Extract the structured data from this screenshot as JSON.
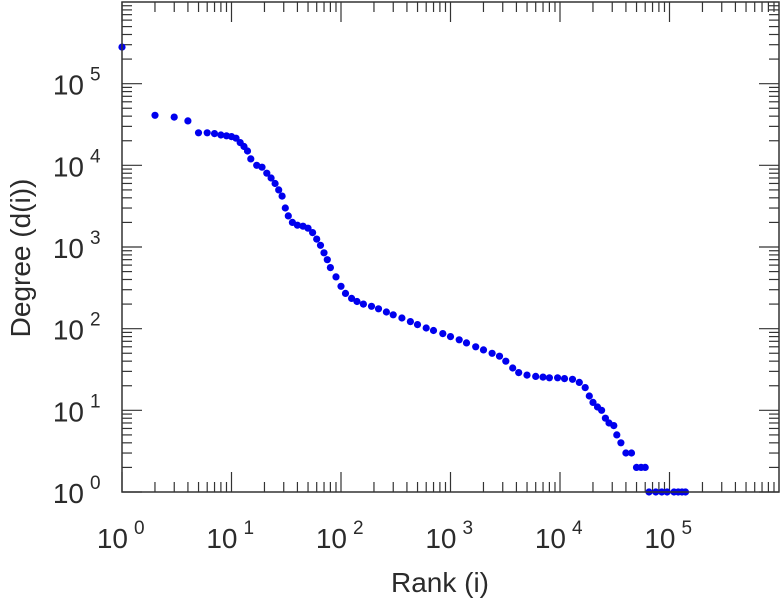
{
  "chart_data": {
    "type": "scatter",
    "xlabel": "Rank (i)",
    "ylabel": "Degree (d(i))",
    "xscale": "log",
    "yscale": "log",
    "xlim": [
      1,
      1000000
    ],
    "ylim": [
      1,
      1000000
    ],
    "grid": false,
    "marker_color": "#0000ee",
    "x_ticks": [
      {
        "base": "10",
        "exp": "0"
      },
      {
        "base": "10",
        "exp": "1"
      },
      {
        "base": "10",
        "exp": "2"
      },
      {
        "base": "10",
        "exp": "3"
      },
      {
        "base": "10",
        "exp": "4"
      },
      {
        "base": "10",
        "exp": "5"
      }
    ],
    "y_ticks": [
      {
        "base": "10",
        "exp": "0"
      },
      {
        "base": "10",
        "exp": "1"
      },
      {
        "base": "10",
        "exp": "2"
      },
      {
        "base": "10",
        "exp": "3"
      },
      {
        "base": "10",
        "exp": "4"
      },
      {
        "base": "10",
        "exp": "5"
      }
    ],
    "points": [
      [
        1,
        280000
      ],
      [
        2,
        41000
      ],
      [
        3,
        39000
      ],
      [
        4,
        35000
      ],
      [
        5,
        25000
      ],
      [
        6,
        25000
      ],
      [
        7,
        24500
      ],
      [
        8,
        23500
      ],
      [
        9,
        23000
      ],
      [
        10,
        22500
      ],
      [
        11,
        21500
      ],
      [
        12,
        19000
      ],
      [
        13,
        17000
      ],
      [
        14,
        15000
      ],
      [
        15,
        12000
      ],
      [
        17,
        10000
      ],
      [
        19,
        9500
      ],
      [
        21,
        8000
      ],
      [
        23,
        7000
      ],
      [
        25,
        6000
      ],
      [
        27,
        5000
      ],
      [
        29,
        4200
      ],
      [
        31,
        3000
      ],
      [
        33,
        2400
      ],
      [
        36,
        2000
      ],
      [
        40,
        1850
      ],
      [
        45,
        1800
      ],
      [
        50,
        1700
      ],
      [
        55,
        1500
      ],
      [
        60,
        1250
      ],
      [
        65,
        1050
      ],
      [
        70,
        850
      ],
      [
        75,
        700
      ],
      [
        80,
        560
      ],
      [
        90,
        430
      ],
      [
        100,
        330
      ],
      [
        110,
        270
      ],
      [
        125,
        235
      ],
      [
        140,
        215
      ],
      [
        160,
        200
      ],
      [
        190,
        188
      ],
      [
        220,
        175
      ],
      [
        260,
        160
      ],
      [
        300,
        148
      ],
      [
        360,
        135
      ],
      [
        430,
        122
      ],
      [
        500,
        112
      ],
      [
        600,
        102
      ],
      [
        700,
        95
      ],
      [
        850,
        87
      ],
      [
        1000,
        80
      ],
      [
        1200,
        73
      ],
      [
        1400,
        67
      ],
      [
        1700,
        60
      ],
      [
        2000,
        55
      ],
      [
        2400,
        50
      ],
      [
        2800,
        46
      ],
      [
        3200,
        40
      ],
      [
        3700,
        33
      ],
      [
        4200,
        29
      ],
      [
        5000,
        27
      ],
      [
        6000,
        26
      ],
      [
        7000,
        25.5
      ],
      [
        8000,
        25
      ],
      [
        9500,
        25
      ],
      [
        11000,
        24.5
      ],
      [
        13000,
        24
      ],
      [
        15000,
        22
      ],
      [
        17000,
        19
      ],
      [
        18500,
        15
      ],
      [
        20000,
        12.5
      ],
      [
        22000,
        11
      ],
      [
        24000,
        10
      ],
      [
        26000,
        8
      ],
      [
        28000,
        7
      ],
      [
        31000,
        6.5
      ],
      [
        33000,
        5
      ],
      [
        36000,
        4
      ],
      [
        40000,
        3
      ],
      [
        45000,
        3
      ],
      [
        50000,
        2
      ],
      [
        55000,
        2
      ],
      [
        60000,
        2
      ],
      [
        65000,
        1
      ],
      [
        75000,
        1
      ],
      [
        85000,
        1
      ],
      [
        95000,
        1
      ],
      [
        110000,
        1
      ],
      [
        120000,
        1
      ],
      [
        130000,
        1
      ],
      [
        140000,
        1
      ]
    ]
  }
}
